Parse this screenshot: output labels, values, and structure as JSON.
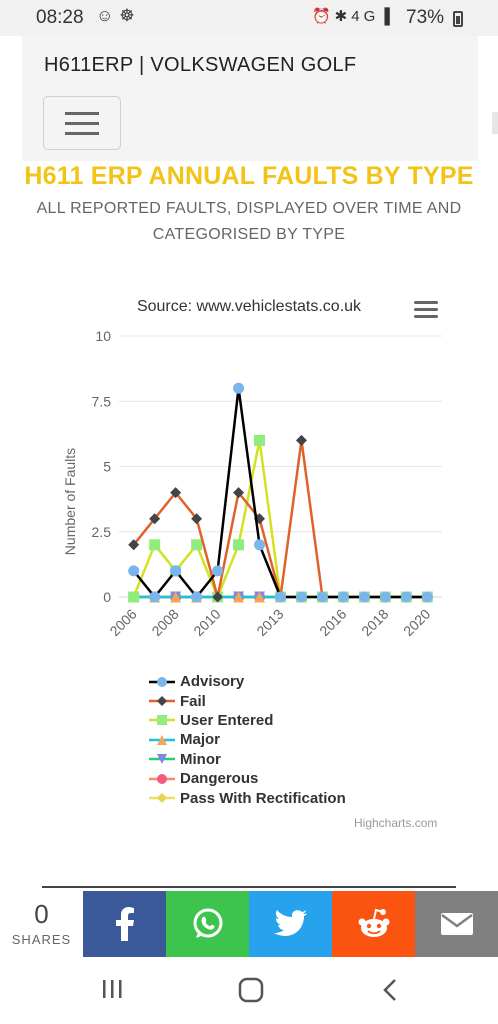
{
  "status_bar": {
    "time": "08:28",
    "battery": "73%",
    "network": "4G"
  },
  "header": {
    "site_title": "H611ERP | VOLKSWAGEN GOLF"
  },
  "page": {
    "heading": "H611 ERP ANNUAL FAULTS BY TYPE",
    "subheading": "ALL REPORTED FAULTS, DISPLAYED OVER TIME AND CATEGORISED BY TYPE"
  },
  "chart_data": {
    "type": "line",
    "title": "",
    "subtitle": "Source: www.vehiclestats.co.uk",
    "xlabel": "",
    "ylabel": "Number of Faults",
    "x": [
      2006,
      2007,
      2008,
      2009,
      2010,
      2011,
      2012,
      2013,
      2014,
      2015,
      2016,
      2017,
      2018,
      2019,
      2020
    ],
    "x_tick_labels": [
      "2006",
      "2008",
      "2010",
      "2013",
      "2016",
      "2018",
      "2020"
    ],
    "y_ticks": [
      "0",
      "2.5",
      "5",
      "7.5",
      "10"
    ],
    "ylim": [
      0,
      10
    ],
    "grid": true,
    "legend_position": "bottom",
    "series": [
      {
        "name": "Advisory",
        "color": "#000000",
        "marker": "circle",
        "marker_color": "#7cb5ec",
        "values": [
          1,
          0,
          1,
          0,
          1,
          8,
          2,
          0,
          0,
          0,
          0,
          0,
          0,
          0,
          0
        ]
      },
      {
        "name": "Fail",
        "color": "#e0622a",
        "marker": "diamond",
        "marker_color": "#434348",
        "values": [
          2,
          3,
          4,
          3,
          0,
          4,
          3,
          0,
          6,
          0,
          0,
          0,
          0,
          0,
          0
        ]
      },
      {
        "name": "User Entered",
        "color": "#d4e21e",
        "marker": "square",
        "marker_color": "#90ed7d",
        "values": [
          0,
          2,
          1,
          2,
          0,
          2,
          6,
          0,
          0,
          0,
          0,
          0,
          0,
          0,
          0
        ]
      },
      {
        "name": "Major",
        "color": "#20c0e0",
        "marker": "triangle",
        "marker_color": "#f7a35c",
        "values": [
          0,
          0,
          0,
          0,
          0,
          0,
          0,
          0,
          0,
          0,
          0,
          0,
          0,
          0,
          0
        ]
      },
      {
        "name": "Minor",
        "color": "#2ecc71",
        "marker": "triangle-down",
        "marker_color": "#8085e9",
        "values": [
          0,
          0,
          0,
          0,
          0,
          0,
          0,
          0,
          0,
          0,
          0,
          0,
          0,
          0,
          0
        ]
      },
      {
        "name": "Dangerous",
        "color": "#f28f6a",
        "marker": "circle",
        "marker_color": "#f15c80",
        "values": [
          0,
          0,
          0,
          0,
          0,
          0,
          0,
          0,
          0,
          0,
          0,
          0,
          0,
          0,
          0
        ]
      },
      {
        "name": "Pass With Rectification",
        "color": "#f0e060",
        "marker": "diamond",
        "marker_color": "#e4d354",
        "values": [
          0,
          0,
          0,
          0,
          0,
          0,
          0,
          0,
          0,
          0,
          0,
          0,
          0,
          0,
          0
        ]
      }
    ],
    "credits": "Highcharts.com"
  },
  "share": {
    "count": "0",
    "count_label": "SHARES",
    "buttons": [
      {
        "name": "facebook",
        "color": "#3b5998"
      },
      {
        "name": "whatsapp",
        "color": "#3dc44f"
      },
      {
        "name": "twitter",
        "color": "#27a2ec"
      },
      {
        "name": "reddit",
        "color": "#fa5410"
      },
      {
        "name": "email",
        "color": "#808080"
      }
    ]
  }
}
